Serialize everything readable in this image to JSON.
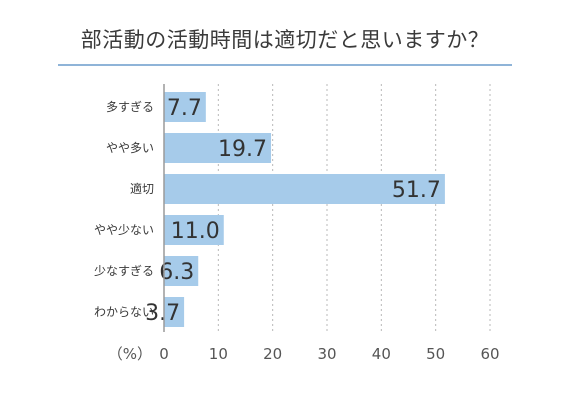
{
  "chart_data": {
    "type": "bar",
    "orientation": "horizontal",
    "title": "部活動の活動時間は適切だと思いますか？",
    "unit_label": "（%）",
    "categories": [
      "多すぎる",
      "やや多い",
      "適切",
      "やや少ない",
      "少なすぎる",
      "わからない"
    ],
    "values": [
      7.7,
      19.7,
      51.7,
      11.0,
      6.3,
      3.7
    ],
    "value_labels": [
      "7.7",
      "19.7",
      "51.7",
      "11.0",
      "6.3",
      "3.7"
    ],
    "xlim": [
      0,
      60
    ],
    "xticks": [
      "0",
      "10",
      "20",
      "30",
      "40",
      "50",
      "60"
    ],
    "grid": true,
    "colors": {
      "bar": "#a6cbea",
      "grid": "#b8b8b8",
      "axis": "#9a9a9a",
      "title_rule": "#8fb4d8"
    }
  }
}
